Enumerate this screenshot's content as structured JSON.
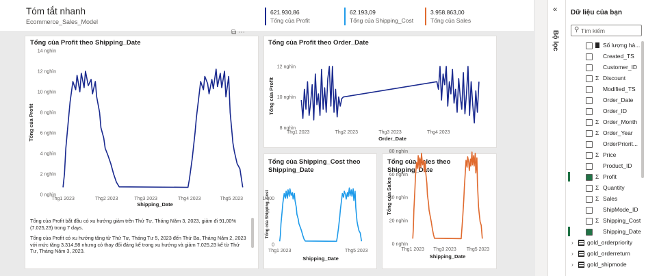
{
  "header": {
    "title": "Tóm tắt nhanh",
    "subtitle": "Ecommerce_Sales_Model"
  },
  "kpis": [
    {
      "value": "621.930,86",
      "caption": "Tổng của Profit",
      "color": "#1a2a8f"
    },
    {
      "value": "62.193,09",
      "caption": "Tổng của Shipping_Cost",
      "color": "#1f9bea"
    },
    {
      "value": "3.958.863,00",
      "caption": "Tổng của Sales",
      "color": "#e06a2e"
    }
  ],
  "chart_data": [
    {
      "type": "line",
      "title": "Tổng của Profit theo Shipping_Date",
      "x_label": "Shipping_Date",
      "y_label": "Tổng của Profit",
      "color": "#1a2a8f",
      "x": [
        1,
        2,
        3,
        5,
        6,
        8,
        10,
        11,
        13,
        14,
        16,
        17,
        19,
        21,
        22,
        24,
        25,
        27,
        28,
        30,
        31,
        33,
        35,
        37,
        39,
        41,
        90,
        91,
        93,
        95,
        96,
        98,
        99,
        101,
        102,
        104,
        105,
        107,
        108,
        110,
        111,
        113,
        114,
        116,
        117,
        119,
        120,
        122,
        123,
        125,
        127,
        129
      ],
      "values": [
        700,
        2000,
        4500,
        7500,
        9000,
        11000,
        10200,
        11600,
        10000,
        11800,
        10400,
        12000,
        10600,
        11200,
        9800,
        11000,
        9500,
        8000,
        6500,
        5500,
        4500,
        3800,
        3000,
        2000,
        1200,
        750,
        700,
        1500,
        3500,
        6000,
        7500,
        9800,
        11000,
        10200,
        11500,
        10800,
        9800,
        11200,
        10300,
        12200,
        10500,
        11800,
        10400,
        12000,
        9500,
        11500,
        8000,
        5000,
        4200,
        3000,
        2500,
        700
      ],
      "xlim": [
        -1,
        134
      ],
      "xticks": [
        {
          "value": 1,
          "label": "Thg1 2023"
        },
        {
          "value": 32,
          "label": "Thg2 2023"
        },
        {
          "value": 60,
          "label": "Thg3 2023"
        },
        {
          "value": 91,
          "label": "Thg4 2023"
        },
        {
          "value": 121,
          "label": "Thg5 2023"
        }
      ],
      "ylim": [
        0,
        14000
      ],
      "yticks": [
        {
          "value": 0,
          "label": "0 nghìn"
        },
        {
          "value": 2000,
          "label": "2 nghìn"
        },
        {
          "value": 4000,
          "label": "4 nghìn"
        },
        {
          "value": 6000,
          "label": "6 nghìn"
        },
        {
          "value": 8000,
          "label": "8 nghìn"
        },
        {
          "value": 10000,
          "label": "10 nghìn"
        },
        {
          "value": 12000,
          "label": "12 nghìn"
        },
        {
          "value": 14000,
          "label": "14 nghìn"
        }
      ]
    },
    {
      "type": "line",
      "title": "Tổng của Profit theo Order_Date",
      "x_label": "Order_Date",
      "y_label": "Tổng của Profit",
      "color": "#1a2a8f",
      "x": [
        3,
        4,
        5,
        6,
        7,
        8,
        9,
        10,
        11,
        12,
        13,
        14,
        15,
        16,
        17,
        18,
        19,
        20,
        21,
        22,
        23,
        24,
        25,
        26,
        27,
        28,
        29,
        30,
        90,
        91,
        92,
        93,
        94,
        95,
        96,
        97,
        98,
        99,
        100,
        101,
        102,
        103,
        104,
        105,
        106,
        107,
        108,
        109,
        110,
        111,
        112,
        113,
        114,
        115,
        116,
        117
      ],
      "values": [
        9800,
        8600,
        10500,
        9200,
        11000,
        8800,
        9600,
        10800,
        8500,
        11500,
        9500,
        10200,
        8800,
        11800,
        9200,
        10600,
        9000,
        11200,
        12000,
        9400,
        12000,
        9000,
        10500,
        8700,
        10000,
        9400,
        9900,
        10000,
        11000,
        10500,
        12000,
        9800,
        11500,
        10800,
        12000,
        9400,
        11000,
        10200,
        11800,
        9600,
        10500,
        9000,
        11200,
        10000,
        9200,
        11600,
        8900,
        10200,
        12000,
        8800,
        11000,
        9500,
        8300,
        10400,
        9000,
        11000
      ],
      "xlim": [
        2,
        121
      ],
      "xticks": [
        {
          "value": 1,
          "label": "Thg1 2023"
        },
        {
          "value": 32,
          "label": "Thg2 2023"
        },
        {
          "value": 60,
          "label": "Thg3 2023"
        },
        {
          "value": 91,
          "label": "Thg4 2023"
        }
      ],
      "ylim": [
        7700,
        12400
      ],
      "yticks": [
        {
          "value": 8000,
          "label": "8 nghìn"
        },
        {
          "value": 10000,
          "label": "10 nghìn"
        },
        {
          "value": 12000,
          "label": "12 nghìn"
        }
      ]
    },
    {
      "type": "line",
      "title": "Tổng của Shipping_Cost theo Shipping_Date",
      "x_label": "Shipping_Date",
      "y_label": "Tổng của Shipping_Cost",
      "color": "#1f9bea",
      "x": [
        1,
        2,
        3,
        5,
        6,
        8,
        10,
        11,
        13,
        14,
        16,
        17,
        19,
        21,
        22,
        24,
        25,
        27,
        28,
        30,
        31,
        33,
        35,
        37,
        39,
        41,
        90,
        91,
        93,
        95,
        96,
        98,
        99,
        101,
        102,
        104,
        105,
        107,
        108,
        110,
        111,
        113,
        114,
        116,
        117,
        119,
        120,
        122,
        123,
        125,
        127,
        129
      ],
      "values": [
        70,
        200,
        450,
        750,
        900,
        1100,
        1000,
        1150,
        1000,
        1180,
        1040,
        1200,
        1060,
        1120,
        980,
        1100,
        950,
        800,
        650,
        550,
        450,
        380,
        300,
        200,
        120,
        75,
        70,
        150,
        350,
        600,
        750,
        980,
        1100,
        1020,
        1150,
        1080,
        980,
        1120,
        1030,
        1220,
        1050,
        1180,
        1040,
        1200,
        950,
        1150,
        800,
        500,
        420,
        300,
        250,
        70
      ],
      "xlim": [
        -3,
        133
      ],
      "xticks": [
        {
          "value": 1,
          "label": "Thg1 2023"
        },
        {
          "value": 121,
          "label": "Thg5 2023"
        }
      ],
      "ylim": [
        0,
        1300
      ],
      "yticks": [
        0,
        {
          "value": 1000,
          "label": "1.000"
        }
      ]
    },
    {
      "type": "line",
      "title": "Tổng của Sales theo Shipping_Date",
      "x_label": "Shipping_Date",
      "y_label": "Tổng của Sales",
      "color": "#e06a2e",
      "x": [
        1,
        2,
        3,
        5,
        6,
        8,
        10,
        11,
        13,
        14,
        16,
        17,
        19,
        21,
        22,
        24,
        25,
        27,
        28,
        30,
        31,
        33,
        35,
        37,
        39,
        41,
        90,
        91,
        93,
        95,
        96,
        98,
        99,
        101,
        102,
        104,
        105,
        107,
        108,
        110,
        111,
        113,
        114,
        116,
        117,
        119,
        120,
        122,
        123,
        125,
        127,
        129
      ],
      "values": [
        4500,
        13000,
        29000,
        48000,
        58000,
        70000,
        65000,
        76000,
        64000,
        74000,
        66000,
        78000,
        68000,
        72000,
        62000,
        71000,
        61000,
        52000,
        42000,
        35000,
        29000,
        24000,
        19000,
        13000,
        8000,
        4800,
        4500,
        10000,
        23000,
        39000,
        49000,
        64000,
        72000,
        66000,
        75000,
        70000,
        63000,
        73000,
        67000,
        79000,
        68000,
        76000,
        67000,
        78000,
        61000,
        74000,
        52000,
        32000,
        27000,
        19000,
        16000,
        4500
      ],
      "xlim": [
        -3,
        133
      ],
      "xticks": [
        {
          "value": 1,
          "label": "Thg1 2023"
        },
        {
          "value": 60,
          "label": "Thg3 2023"
        },
        {
          "value": 121,
          "label": "Thg5 2023"
        }
      ],
      "ylim": [
        0,
        82000
      ],
      "yticks": [
        {
          "value": 0,
          "label": "0 nghìn"
        },
        {
          "value": 20000,
          "label": "20 nghìn"
        },
        {
          "value": 40000,
          "label": "40 nghìn"
        },
        {
          "value": 60000,
          "label": "60 nghìn"
        },
        {
          "value": 80000,
          "label": "80 nghìn"
        }
      ]
    }
  ],
  "narrative": [
    "Tổng của Profit bắt đầu có xu hướng giảm trên Thứ Tư, Tháng Năm 3, 2023, giảm đi 91,00% (7.025,23) trong 7 days.",
    "Tổng của Profit có xu hướng tăng từ Thứ Tư, Tháng Tư 5, 2023 đến Thứ Ba, Tháng Năm 2, 2023 với mức tăng 3.314,98 nhưng có thay đổi đáng kể trong xu hướng và giảm 7.025,23 kể từ Thứ Tư, Tháng Năm 3, 2023."
  ],
  "side_panel": {
    "filter_label": "Bộ lọc",
    "title": "Dữ liệu của bạn",
    "search_placeholder": "Tìm kiếm",
    "fields": [
      {
        "name": "Số lượng hà...",
        "kind": "measure",
        "checked": false
      },
      {
        "name": "Created_TS",
        "kind": "text",
        "checked": false
      },
      {
        "name": "Customer_ID",
        "kind": "text",
        "checked": false
      },
      {
        "name": "Discount",
        "kind": "sum",
        "checked": false
      },
      {
        "name": "Modified_TS",
        "kind": "text",
        "checked": false
      },
      {
        "name": "Order_Date",
        "kind": "text",
        "checked": false
      },
      {
        "name": "Order_ID",
        "kind": "text",
        "checked": false
      },
      {
        "name": "Order_Month",
        "kind": "sum",
        "checked": false
      },
      {
        "name": "Order_Year",
        "kind": "sum",
        "checked": false
      },
      {
        "name": "OrderPriorit...",
        "kind": "text",
        "checked": false
      },
      {
        "name": "Price",
        "kind": "sum",
        "checked": false
      },
      {
        "name": "Product_ID",
        "kind": "text",
        "checked": false
      },
      {
        "name": "Profit",
        "kind": "sum",
        "checked": true
      },
      {
        "name": "Quantity",
        "kind": "sum",
        "checked": false
      },
      {
        "name": "Sales",
        "kind": "sum",
        "checked": false
      },
      {
        "name": "ShipMode_ID",
        "kind": "text",
        "checked": false
      },
      {
        "name": "Shipping_Cost",
        "kind": "sum",
        "checked": false
      },
      {
        "name": "Shipping_Date",
        "kind": "text",
        "checked": true
      }
    ],
    "tables": [
      "gold_orderpriority",
      "gold_orderreturn",
      "gold_shipmode"
    ]
  }
}
